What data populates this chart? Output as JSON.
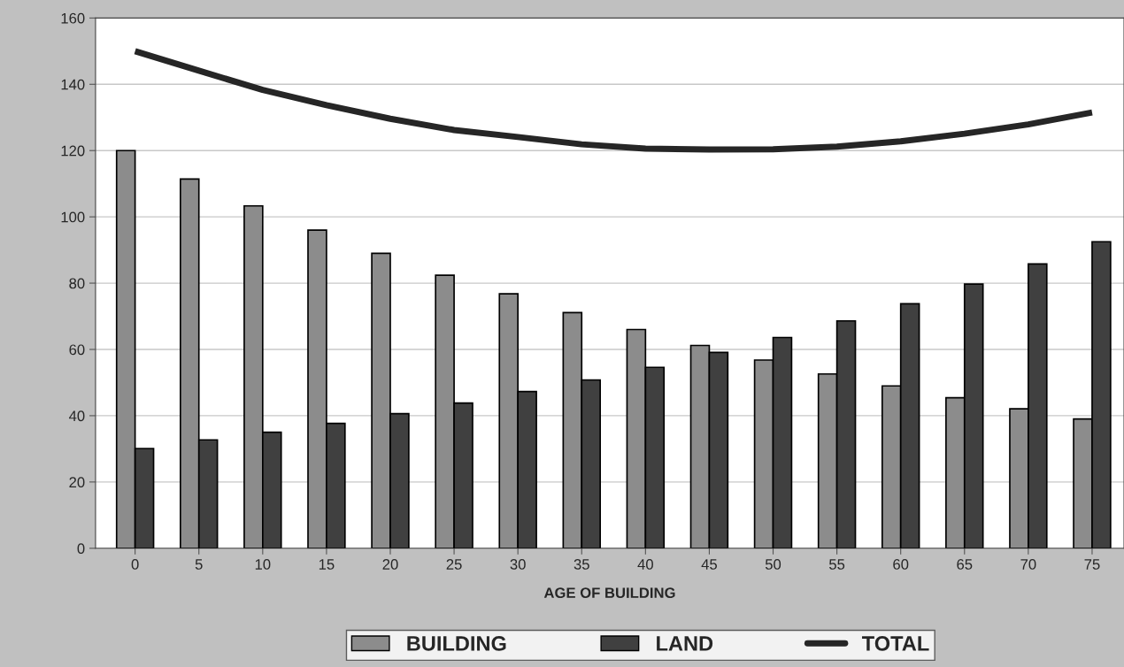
{
  "chart_data": {
    "type": "bar",
    "xlabel": "AGE OF BUILDING",
    "categories": [
      "0",
      "5",
      "10",
      "15",
      "20",
      "25",
      "30",
      "35",
      "40",
      "45",
      "50",
      "55",
      "60",
      "65",
      "70",
      "75"
    ],
    "series": [
      {
        "name": "BUILDING",
        "color": "#8c8c8c",
        "values": [
          120,
          111.4,
          103.3,
          96.0,
          89.0,
          82.4,
          76.8,
          71.1,
          66.0,
          61.2,
          56.8,
          52.6,
          49.0,
          45.4,
          42.1,
          39.0
        ]
      },
      {
        "name": "LAND",
        "color": "#404040",
        "values": [
          30.1,
          32.7,
          35.0,
          37.7,
          40.6,
          43.8,
          47.3,
          50.8,
          54.6,
          59.1,
          63.6,
          68.6,
          73.8,
          79.7,
          85.8,
          92.5
        ]
      },
      {
        "name": "TOTAL",
        "type": "line",
        "color": "#262626",
        "values": [
          150,
          144.1,
          138.3,
          133.7,
          129.6,
          126.2,
          124.1,
          121.9,
          120.6,
          120.3,
          120.4,
          121.2,
          122.8,
          125.1,
          127.9,
          131.5
        ]
      }
    ],
    "ylim": [
      0,
      160
    ],
    "yticks": [
      0,
      20,
      40,
      60,
      80,
      100,
      120,
      140,
      160
    ],
    "grid": "y",
    "legend": "bottom",
    "marker": "none",
    "line_style": "solid"
  }
}
